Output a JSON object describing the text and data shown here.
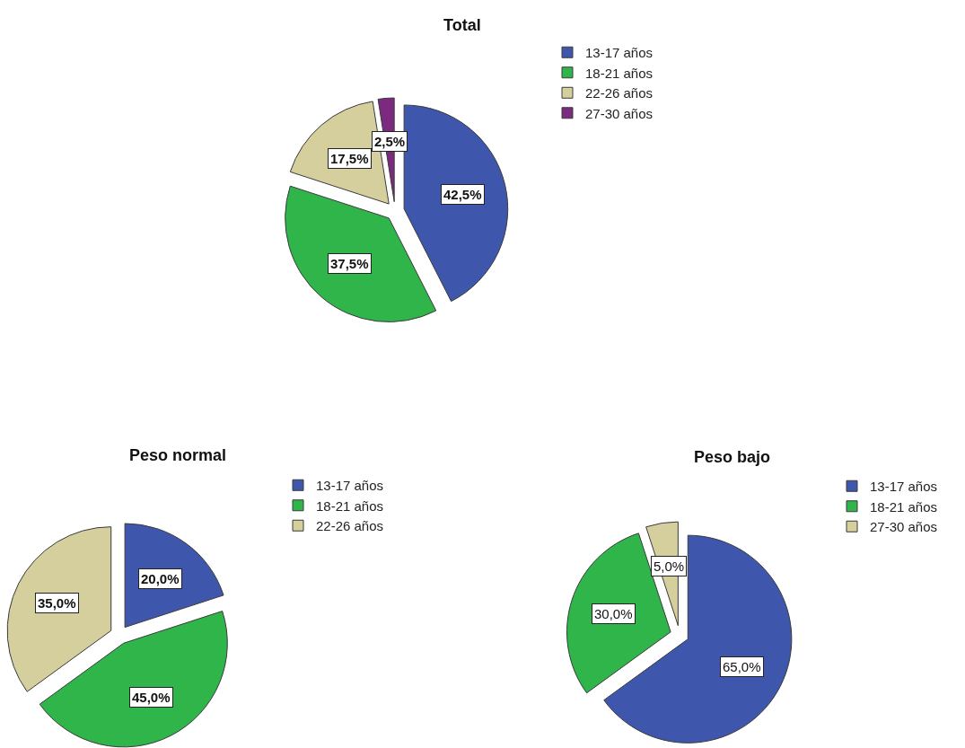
{
  "chart_data": [
    {
      "type": "pie",
      "title": "Total",
      "categories": [
        "13-17 años",
        "18-21 años",
        "22-26 años",
        "27-30 años"
      ],
      "values": [
        42.5,
        37.5,
        17.5,
        2.5
      ],
      "colors": [
        "#3e57ad",
        "#30b54b",
        "#d5cf9d",
        "#7b2a7f"
      ],
      "value_labels": [
        "42,5%",
        "37,5%",
        "17,5%",
        "2,5%"
      ],
      "legend": "top right"
    },
    {
      "type": "pie",
      "title": "Peso normal",
      "categories": [
        "13-17 años",
        "18-21 años",
        "22-26 años"
      ],
      "values": [
        20.0,
        45.0,
        35.0
      ],
      "colors": [
        "#3e57ad",
        "#30b54b",
        "#d5cf9d"
      ],
      "value_labels": [
        "20,0%",
        "45,0%",
        "35,0%"
      ],
      "legend": "top right"
    },
    {
      "type": "pie",
      "title": "Peso bajo",
      "categories": [
        "13-17 años",
        "18-21 años",
        "27-30 años"
      ],
      "values": [
        65.0,
        30.0,
        5.0
      ],
      "colors": [
        "#3e57ad",
        "#30b54b",
        "#d5cf9d"
      ],
      "value_labels": [
        "65,0%",
        "30,0%",
        "5,0%"
      ],
      "legend": "top right"
    }
  ]
}
